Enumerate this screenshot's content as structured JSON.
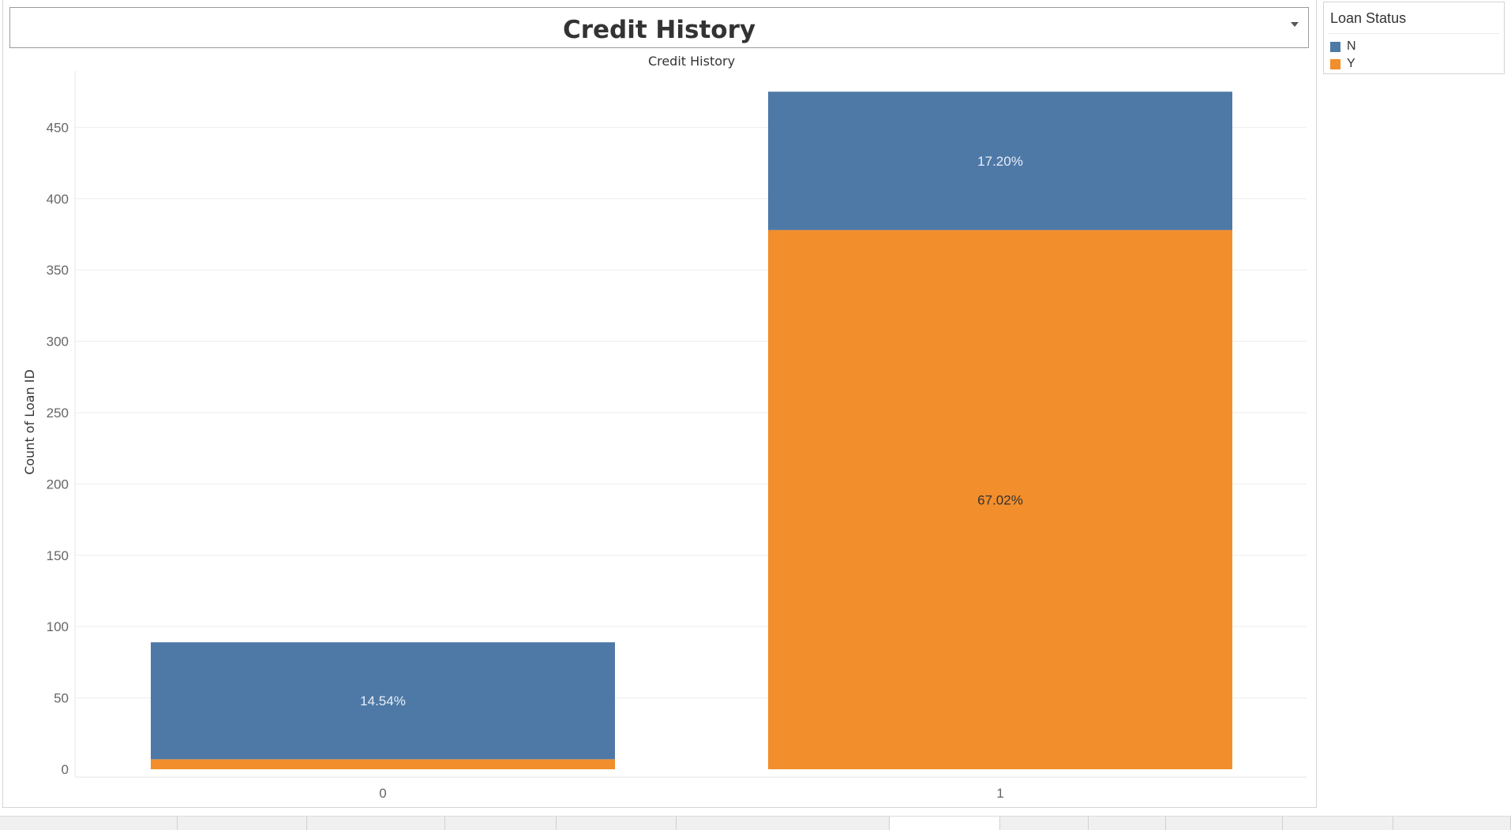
{
  "dashboard": {
    "title": "Credit History"
  },
  "legend": {
    "title": "Loan Status",
    "items": [
      {
        "label": "N",
        "color": "#4e79a7"
      },
      {
        "label": "Y",
        "color": "#f28e2b"
      }
    ]
  },
  "chart_data": {
    "type": "bar",
    "stacked": true,
    "title": "Credit History",
    "xlabel": "",
    "ylabel": "Count of Loan ID",
    "ylim": [
      0,
      475
    ],
    "yticks": [
      0,
      50,
      100,
      150,
      200,
      250,
      300,
      350,
      400,
      450
    ],
    "categories": [
      "0",
      "1"
    ],
    "series": [
      {
        "name": "Y",
        "color": "#f28e2b",
        "values": [
          7,
          378
        ],
        "labels": [
          "",
          "67.02%"
        ]
      },
      {
        "name": "N",
        "color": "#4e79a7",
        "values": [
          82,
          97
        ],
        "labels": [
          "14.54%",
          "17.20%"
        ]
      }
    ],
    "grid": true,
    "legend_position": "right"
  },
  "tabs": [
    "",
    "",
    "",
    "",
    "",
    "",
    "",
    "",
    "",
    "",
    "",
    ""
  ]
}
